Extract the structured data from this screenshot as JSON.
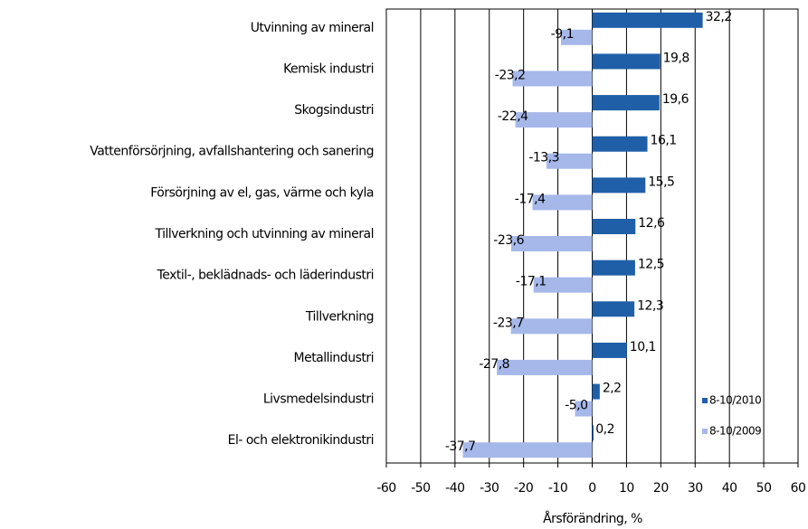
{
  "chart_data": {
    "type": "bar",
    "orientation": "horizontal",
    "x_label": "Årsförändring, %",
    "categories": [
      "Utvinning av mineral",
      "Kemisk industri",
      "Skogsindustri",
      "Vattenförsörjning, avfallshantering och sanering",
      "Försörjning av el, gas, värme och kyla",
      "Tillverkning och utvinning av mineral",
      "Textil-, beklädnads- och läderindustri",
      "Tillverkning",
      "Metallindustri",
      "Livsmedelsindustri",
      "El- och elektronikindustri"
    ],
    "series": [
      {
        "name": "8-10/2010",
        "color": "#1f5fa8",
        "values": [
          32.2,
          19.8,
          19.6,
          16.1,
          15.5,
          12.6,
          12.5,
          12.3,
          10.1,
          2.2,
          0.2
        ],
        "value_labels": [
          "32,2",
          "19,8",
          "19,6",
          "16,1",
          "15,5",
          "12,6",
          "12,5",
          "12,3",
          "10,1",
          "2,2",
          "0,2"
        ]
      },
      {
        "name": "8-10/2009",
        "color": "#a6b8ea",
        "values": [
          -9.1,
          -23.2,
          -22.4,
          -13.3,
          -17.4,
          -23.6,
          -17.1,
          -23.7,
          -27.8,
          -5.0,
          -37.7
        ],
        "value_labels": [
          "-9,1",
          "-23,2",
          "-22,4",
          "-13,3",
          "-17,4",
          "-23,6",
          "-17,1",
          "-23,7",
          "-27,8",
          "-5,0",
          "-37,7"
        ]
      }
    ],
    "xlim": [
      -60,
      60
    ],
    "xticks": [
      -60,
      -50,
      -40,
      -30,
      -20,
      -10,
      0,
      10,
      20,
      30,
      40,
      50,
      60
    ],
    "grid": true,
    "legend_position": "lower right"
  }
}
